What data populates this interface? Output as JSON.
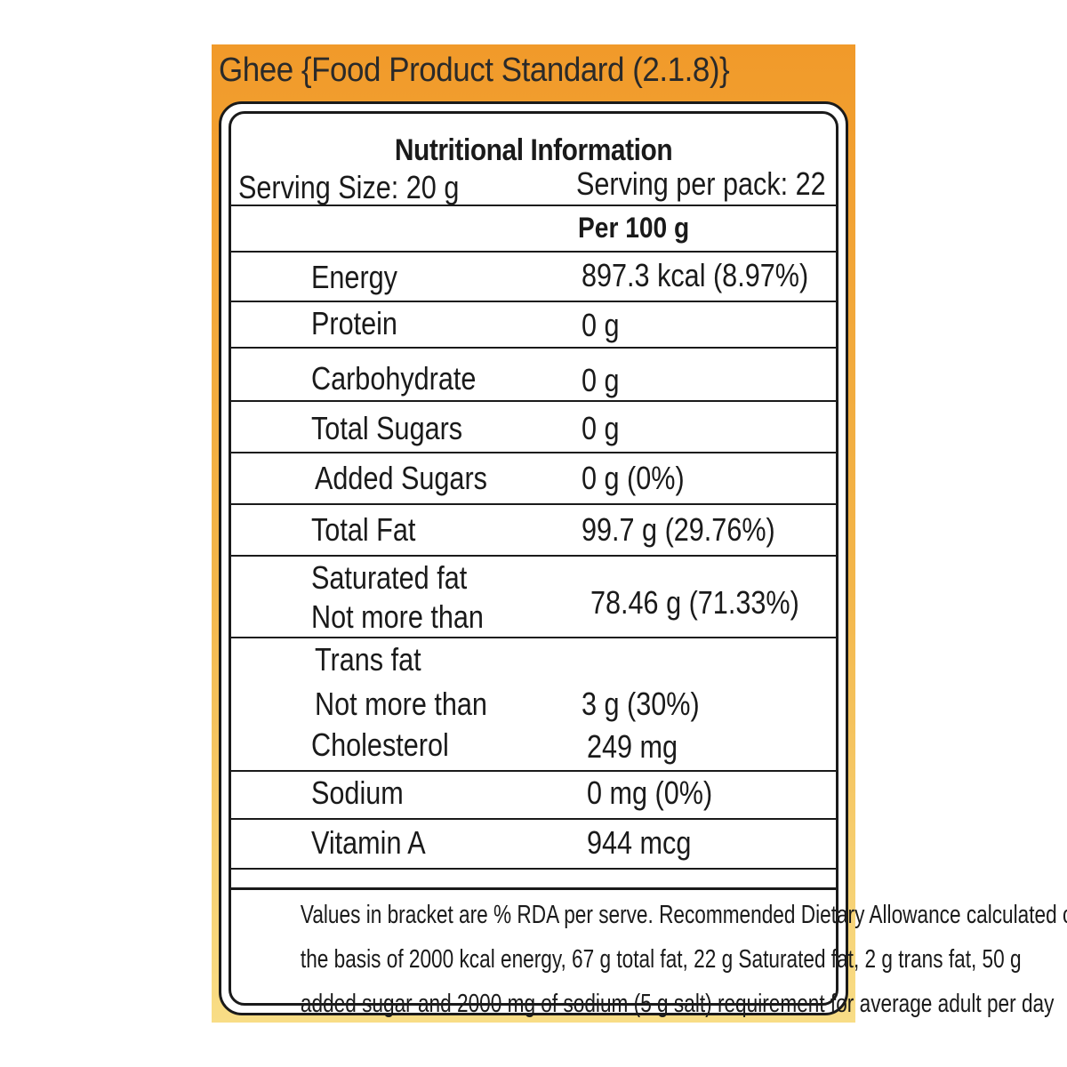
{
  "panel": {
    "title": "Ghee {Food Product Standard (2.1.8)}",
    "colors": {
      "top": "#f19a2a",
      "bottom": "#f8dd86",
      "ink": "#1a1a1a"
    }
  },
  "nutrition": {
    "heading": "Nutritional Information",
    "serving_size": "Serving Size:  20 g",
    "servings_per_pack": "Serving per pack: 22",
    "column_header": "Per 100 g",
    "rows": [
      {
        "name": "Energy",
        "value": "897.3  kcal (8.97%)"
      },
      {
        "name": "Protein",
        "value": "0 g"
      },
      {
        "name": "Carbohydrate",
        "value": "0 g"
      },
      {
        "name": "Total Sugars",
        "value": "0 g"
      },
      {
        "name": "Added Sugars",
        "value": "0 g (0%)"
      },
      {
        "name": "Total Fat",
        "value": "99.7 g (29.76%)"
      },
      {
        "name": "Saturated fat",
        "name2": "Not more than",
        "value": "78.46 g (71.33%)"
      },
      {
        "name": "Trans fat",
        "name2": "Not more than",
        "value": "3 g (30%)"
      },
      {
        "name": "Cholesterol",
        "value": "249 mg"
      },
      {
        "name": "Sodium",
        "value": "0 mg (0%)"
      },
      {
        "name": "Vitamin A",
        "value": "944 mcg"
      }
    ],
    "footnote_lines": [
      "Values in bracket are % RDA per serve. Recommended Dietary Allowance calculated on",
      "the basis of 2000 kcal energy, 67 g total fat, 22 g Saturated fat, 2 g trans fat, 50 g",
      "added sugar and 2000 mg of sodium (5 g salt) requirement for average adult per day"
    ]
  }
}
